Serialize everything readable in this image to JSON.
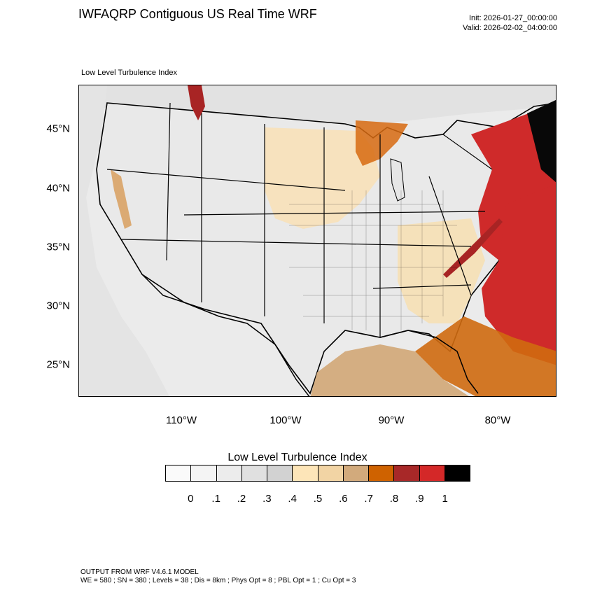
{
  "header": {
    "title": "IWFAQRP Contiguous US Real Time WRF",
    "init": "Init: 2026-01-27_00:00:00",
    "valid": "Valid: 2026-02-02_04:00:00"
  },
  "map": {
    "subtitle": "Low Level Turbulence Index",
    "lat_labels": [
      "45°N",
      "40°N",
      "35°N",
      "30°N",
      "25°N"
    ],
    "lon_labels": [
      "110°W",
      "100°W",
      "90°W",
      "80°W"
    ]
  },
  "legend": {
    "title": "Low Level Turbulence Index",
    "labels": [
      "0",
      ".1",
      ".2",
      ".3",
      ".4",
      ".5",
      ".6",
      ".7",
      ".8",
      ".9",
      "1"
    ],
    "colors": [
      "#fafafa",
      "#f4f4f4",
      "#ececec",
      "#e0e0e0",
      "#d2d2d2",
      "#fde5b8",
      "#f2d4a4",
      "#d2aa7c",
      "#cf6200",
      "#a82828",
      "#d42828",
      "#000000"
    ]
  },
  "footer": {
    "line1": "OUTPUT FROM WRF V4.6.1 MODEL",
    "line2": "WE = 580 ; SN = 380 ; Levels = 38 ; Dis = 8km ; Phys Opt = 8 ; PBL Opt = 1 ; Cu Opt = 3"
  }
}
